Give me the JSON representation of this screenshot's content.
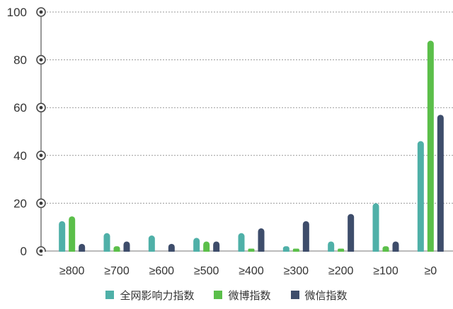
{
  "chart_data": {
    "type": "bar",
    "categories": [
      "≥800",
      "≥700",
      "≥600",
      "≥500",
      "≥400",
      "≥300",
      "≥200",
      "≥100",
      "≥0"
    ],
    "series": [
      {
        "name": "全网影响力指数",
        "color": "#4fb0a8",
        "values": [
          12.5,
          7.5,
          6.5,
          5.5,
          7.5,
          2,
          4,
          20,
          46
        ]
      },
      {
        "name": "微博指数",
        "color": "#5bbf4a",
        "values": [
          14.5,
          2,
          0,
          4,
          1,
          1,
          1,
          2,
          88
        ]
      },
      {
        "name": "微信指数",
        "color": "#3e4d6b",
        "values": [
          3,
          4,
          3,
          4,
          9.5,
          12.5,
          15.5,
          4,
          57
        ]
      }
    ],
    "yticks": [
      0,
      20,
      40,
      60,
      80,
      100
    ],
    "ylim": [
      0,
      100
    ],
    "grid": true,
    "legend_position": "bottom"
  }
}
